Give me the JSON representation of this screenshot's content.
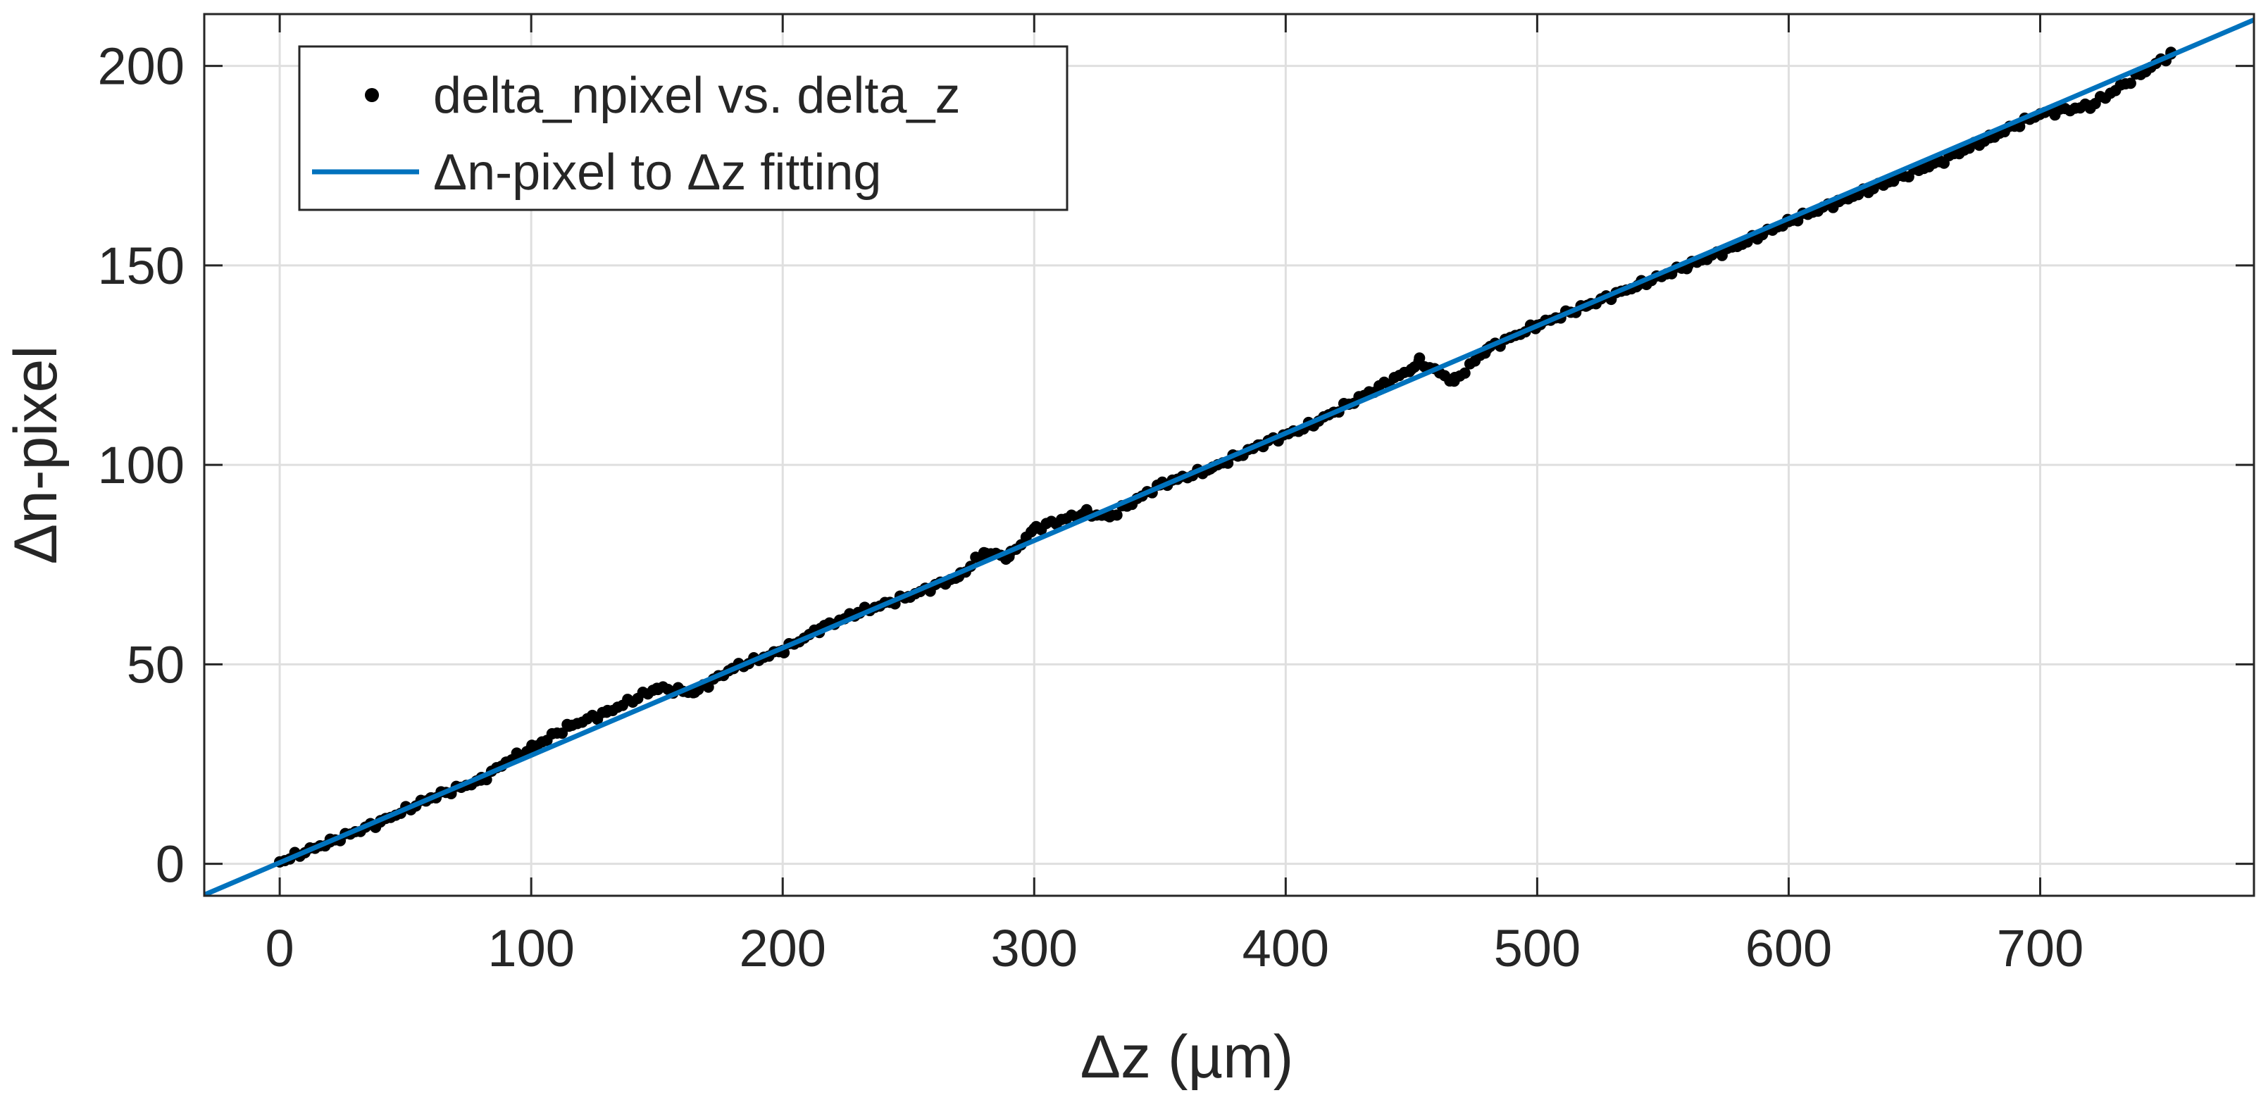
{
  "chart_data": {
    "type": "scatter",
    "title": "",
    "xlabel": "Δz (µm)",
    "ylabel": "Δn-pixel",
    "xlim": [
      -30,
      785
    ],
    "ylim": [
      -8,
      213
    ],
    "xticks": [
      0,
      100,
      200,
      300,
      400,
      500,
      600,
      700
    ],
    "yticks": [
      0,
      50,
      100,
      150,
      200
    ],
    "grid": true,
    "legend": {
      "position": "top-left",
      "entries": [
        "delta_npixel vs. delta_z",
        "Δn-pixel to Δz fitting"
      ]
    },
    "series": [
      {
        "name": "delta_npixel vs. delta_z",
        "kind": "scatter",
        "color": "#000000",
        "x_range": [
          0,
          752
        ],
        "count": 376,
        "points": [
          [
            0,
            0.5
          ],
          [
            20,
            5.5
          ],
          [
            40,
            10.5
          ],
          [
            60,
            16.5
          ],
          [
            80,
            21
          ],
          [
            90,
            25.5
          ],
          [
            100,
            29
          ],
          [
            115,
            34.5
          ],
          [
            130,
            38
          ],
          [
            150,
            44
          ],
          [
            165,
            43
          ],
          [
            180,
            49
          ],
          [
            200,
            53.5
          ],
          [
            215,
            59
          ],
          [
            230,
            63
          ],
          [
            250,
            67
          ],
          [
            270,
            72
          ],
          [
            280,
            78
          ],
          [
            290,
            77
          ],
          [
            300,
            84
          ],
          [
            320,
            88
          ],
          [
            330,
            87
          ],
          [
            350,
            95
          ],
          [
            370,
            99
          ],
          [
            390,
            105
          ],
          [
            410,
            110
          ],
          [
            430,
            117
          ],
          [
            450,
            124
          ],
          [
            453,
            126
          ],
          [
            467,
            121
          ],
          [
            480,
            129
          ],
          [
            500,
            135
          ],
          [
            520,
            140
          ],
          [
            540,
            145
          ],
          [
            560,
            150
          ],
          [
            580,
            155
          ],
          [
            600,
            161
          ],
          [
            620,
            166
          ],
          [
            640,
            171
          ],
          [
            660,
            176
          ],
          [
            680,
            182
          ],
          [
            700,
            188
          ],
          [
            720,
            190
          ],
          [
            740,
            198
          ],
          [
            752,
            203
          ]
        ]
      },
      {
        "name": "Δn-pixel to Δz fitting",
        "kind": "line",
        "color": "#0072bd",
        "slope": 0.2691,
        "intercept": 0.3,
        "x_range": [
          -30,
          785
        ]
      }
    ]
  }
}
